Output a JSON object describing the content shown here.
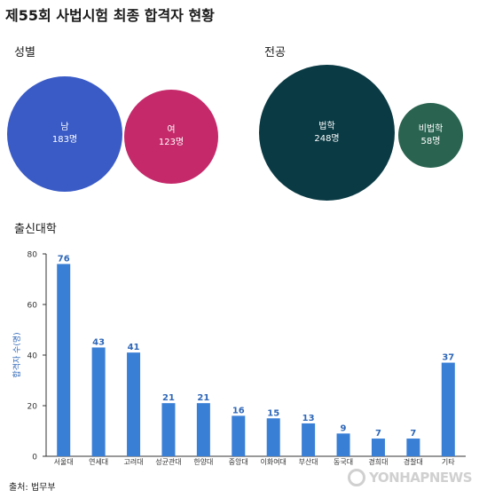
{
  "title": "제55회 사법시험 최종 합격자 현황",
  "gender": {
    "label": "성별",
    "male": {
      "name": "남",
      "count": "183명",
      "color": "#3a5bc6"
    },
    "female": {
      "name": "여",
      "count": "123명",
      "color": "#c5296a"
    }
  },
  "major": {
    "label": "전공",
    "law": {
      "name": "법학",
      "count": "248명",
      "color": "#0a3a44"
    },
    "nonlaw": {
      "name": "비법학",
      "count": "58명",
      "color": "#2a6451"
    }
  },
  "university_label": "출신대학",
  "source": "출처: 법무부",
  "watermark": "YONHAPNEWS",
  "chart_data": {
    "type": "bar",
    "categories": [
      "서울대",
      "연세대",
      "고려대",
      "성균관대",
      "한양대",
      "중앙대",
      "이화여대",
      "부산대",
      "동국대",
      "경희대",
      "경찰대",
      "기타"
    ],
    "values": [
      76,
      43,
      41,
      21,
      21,
      16,
      15,
      13,
      9,
      7,
      7,
      37
    ],
    "ylabel": "합격자 수(명)",
    "ylim": [
      0,
      80
    ],
    "yticks": [
      0,
      20,
      40,
      60,
      80
    ],
    "bar_color": "#3a7fd6",
    "label_color": "#2e67b8",
    "grid": false
  }
}
